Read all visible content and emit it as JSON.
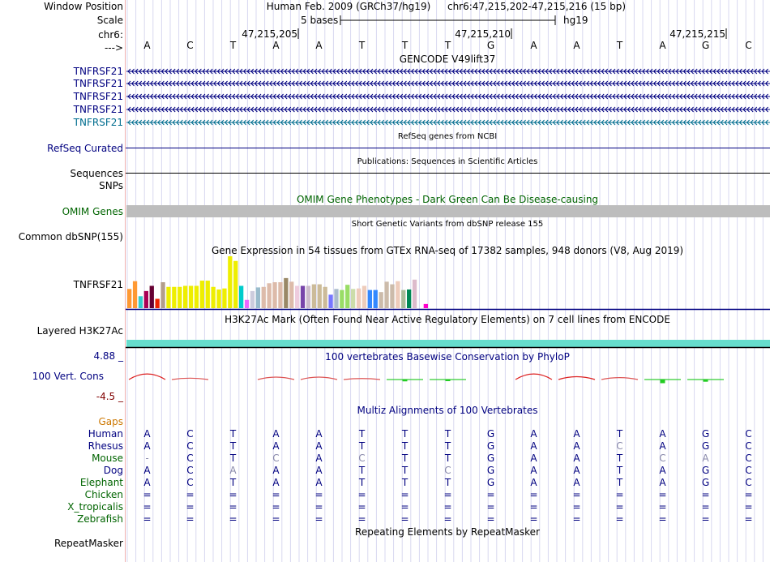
{
  "window_position": {
    "label": "Window Position",
    "assembly": "Human Feb. 2009 (GRCh37/hg19)",
    "range": "chr6:47,215,202-47,215,216 (15 bp)"
  },
  "scale": {
    "label": "Scale",
    "size_label": "5 bases",
    "db": "hg19"
  },
  "chrom": {
    "label": "chr6:",
    "strand_label": "--->",
    "positions": [
      "47,215,205",
      "47,215,210",
      "47,215,215"
    ],
    "sequence": [
      "A",
      "C",
      "T",
      "A",
      "A",
      "T",
      "T",
      "T",
      "G",
      "A",
      "A",
      "T",
      "A",
      "G",
      "C"
    ]
  },
  "gencode": {
    "title": "GENCODE V49lift37",
    "genes": [
      "TNFRSF21",
      "TNFRSF21",
      "TNFRSF21",
      "TNFRSF21",
      "TNFRSF21"
    ]
  },
  "refseq": {
    "title": "RefSeq genes from NCBI",
    "label": "RefSeq Curated"
  },
  "publications": {
    "title": "Publications: Sequences in Scientific Articles",
    "label": "Sequences"
  },
  "snps": {
    "label": "SNPs"
  },
  "omim": {
    "title": "OMIM Gene Phenotypes - Dark Green Can Be Disease-causing",
    "label": "OMIM Genes"
  },
  "dbsnp": {
    "title": "Short Genetic Variants from dbSNP release 155",
    "label": "Common dbSNP(155)"
  },
  "gtex": {
    "title": "Gene Expression in 54 tissues from GTEx RNA-seq of 17382 samples, 948 donors (V8, Aug 2019)",
    "label": "TNFRSF21",
    "bars": [
      {
        "value": 0.37,
        "color": "#ff9933"
      },
      {
        "value": 0.52,
        "color": "#ff9933"
      },
      {
        "value": 0.23,
        "color": "#33cccc"
      },
      {
        "value": 0.33,
        "color": "#aa0055"
      },
      {
        "value": 0.43,
        "color": "#660033"
      },
      {
        "value": 0.18,
        "color": "#ee2200"
      },
      {
        "value": 0.5,
        "color": "#b39e8c"
      },
      {
        "value": 0.41,
        "color": "#eeee00"
      },
      {
        "value": 0.41,
        "color": "#eeee00"
      },
      {
        "value": 0.41,
        "color": "#eeee00"
      },
      {
        "value": 0.43,
        "color": "#eeee00"
      },
      {
        "value": 0.43,
        "color": "#eeee00"
      },
      {
        "value": 0.43,
        "color": "#eeee00"
      },
      {
        "value": 0.53,
        "color": "#eeee00"
      },
      {
        "value": 0.53,
        "color": "#eeee00"
      },
      {
        "value": 0.41,
        "color": "#eeee00"
      },
      {
        "value": 0.36,
        "color": "#eeee00"
      },
      {
        "value": 0.38,
        "color": "#eeee00"
      },
      {
        "value": 1.0,
        "color": "#eeee00"
      },
      {
        "value": 0.91,
        "color": "#eeee00"
      },
      {
        "value": 0.43,
        "color": "#00cccc"
      },
      {
        "value": 0.16,
        "color": "#ee66ff"
      },
      {
        "value": 0.33,
        "color": "#ccccdd"
      },
      {
        "value": 0.4,
        "color": "#99bbcc"
      },
      {
        "value": 0.41,
        "color": "#ddbbaa"
      },
      {
        "value": 0.48,
        "color": "#ddbbaa"
      },
      {
        "value": 0.5,
        "color": "#ddbbaa"
      },
      {
        "value": 0.5,
        "color": "#ddbbaa"
      },
      {
        "value": 0.58,
        "color": "#998866"
      },
      {
        "value": 0.51,
        "color": "#ddbbaa"
      },
      {
        "value": 0.43,
        "color": "#eeccdd"
      },
      {
        "value": 0.43,
        "color": "#7744aa"
      },
      {
        "value": 0.43,
        "color": "#ccbbcc"
      },
      {
        "value": 0.46,
        "color": "#ccbb99"
      },
      {
        "value": 0.46,
        "color": "#ccbb99"
      },
      {
        "value": 0.41,
        "color": "#ccbb99"
      },
      {
        "value": 0.26,
        "color": "#7777ff"
      },
      {
        "value": 0.37,
        "color": "#aabbcc"
      },
      {
        "value": 0.35,
        "color": "#99dd66"
      },
      {
        "value": 0.45,
        "color": "#99dd66"
      },
      {
        "value": 0.37,
        "color": "#ccddaa"
      },
      {
        "value": 0.38,
        "color": "#eeccbb"
      },
      {
        "value": 0.43,
        "color": "#eeccbb"
      },
      {
        "value": 0.35,
        "color": "#3388ff"
      },
      {
        "value": 0.35,
        "color": "#3388ff"
      },
      {
        "value": 0.31,
        "color": "#ccbbaa"
      },
      {
        "value": 0.51,
        "color": "#ccbbaa"
      },
      {
        "value": 0.46,
        "color": "#ccbbaa"
      },
      {
        "value": 0.52,
        "color": "#eeccbb"
      },
      {
        "value": 0.35,
        "color": "#aabb99"
      },
      {
        "value": 0.36,
        "color": "#008855"
      },
      {
        "value": 0.55,
        "color": "#ddbbcc"
      },
      {
        "value": 0.0,
        "color": "#ffffff"
      },
      {
        "value": 0.08,
        "color": "#ff00cc"
      }
    ]
  },
  "h3k27ac": {
    "title": "H3K27Ac Mark (Often Found Near Active Regulatory Elements) on 7 cell lines from ENCODE",
    "label": "Layered H3K27Ac"
  },
  "phylop": {
    "title": "100 vertebrates Basewise Conservation by PhyloP",
    "label": "100 Vert. Cons",
    "max": "4.88 _",
    "min": "-4.5 _",
    "scores": [
      2.6,
      0.3,
      0.0,
      0.9,
      0.9,
      0.1,
      -0.5,
      -0.3,
      0.0,
      2.6,
      1.1,
      0.6,
      -1.0,
      -0.6,
      0.0
    ]
  },
  "multiz": {
    "title": "Multiz Alignments of 100 Vertebrates",
    "gaps_label": "Gaps",
    "species": [
      {
        "name": "Human",
        "color": "#000080",
        "bases": [
          "A",
          "C",
          "T",
          "A",
          "A",
          "T",
          "T",
          "T",
          "G",
          "A",
          "A",
          "T",
          "A",
          "G",
          "C"
        ]
      },
      {
        "name": "Rhesus",
        "color": "#000080",
        "bases": [
          "A",
          "C",
          "T",
          "A",
          "A",
          "T",
          "T",
          "T",
          "G",
          "A",
          "A",
          "C",
          "A",
          "G",
          "C"
        ]
      },
      {
        "name": "Mouse",
        "color": "#006400",
        "bases": [
          "-",
          "C",
          "T",
          "C",
          "A",
          "C",
          "T",
          "T",
          "G",
          "A",
          "A",
          "T",
          "C",
          "A",
          "C"
        ]
      },
      {
        "name": "Dog",
        "color": "#000080",
        "bases": [
          "A",
          "C",
          "A",
          "A",
          "A",
          "T",
          "T",
          "C",
          "G",
          "A",
          "A",
          "T",
          "A",
          "G",
          "C"
        ]
      },
      {
        "name": "Elephant",
        "color": "#006400",
        "bases": [
          "A",
          "C",
          "T",
          "A",
          "A",
          "T",
          "T",
          "T",
          "G",
          "A",
          "A",
          "T",
          "A",
          "G",
          "C"
        ]
      },
      {
        "name": "Chicken",
        "color": "#006400",
        "bases": [
          "=",
          "=",
          "=",
          "=",
          "=",
          "=",
          "=",
          "=",
          "=",
          "=",
          "=",
          "=",
          "=",
          "=",
          "="
        ]
      },
      {
        "name": "X_tropicalis",
        "color": "#006400",
        "bases": [
          "=",
          "=",
          "=",
          "=",
          "=",
          "=",
          "=",
          "=",
          "=",
          "=",
          "=",
          "=",
          "=",
          "=",
          "="
        ]
      },
      {
        "name": "Zebrafish",
        "color": "#006400",
        "bases": [
          "=",
          "=",
          "=",
          "=",
          "=",
          "=",
          "=",
          "=",
          "=",
          "=",
          "=",
          "=",
          "=",
          "=",
          "="
        ]
      }
    ]
  },
  "repeatmasker": {
    "title": "Repeating Elements by RepeatMasker",
    "label": "RepeatMasker"
  },
  "colors": {
    "label_blue": "#000080",
    "label_green": "#006400",
    "label_orange": "#cc7700",
    "gencode_teal": "#006d8f",
    "h3k27ac": "#66ddcc",
    "phylop_max": "#000080",
    "phylop_min": "#800000"
  }
}
